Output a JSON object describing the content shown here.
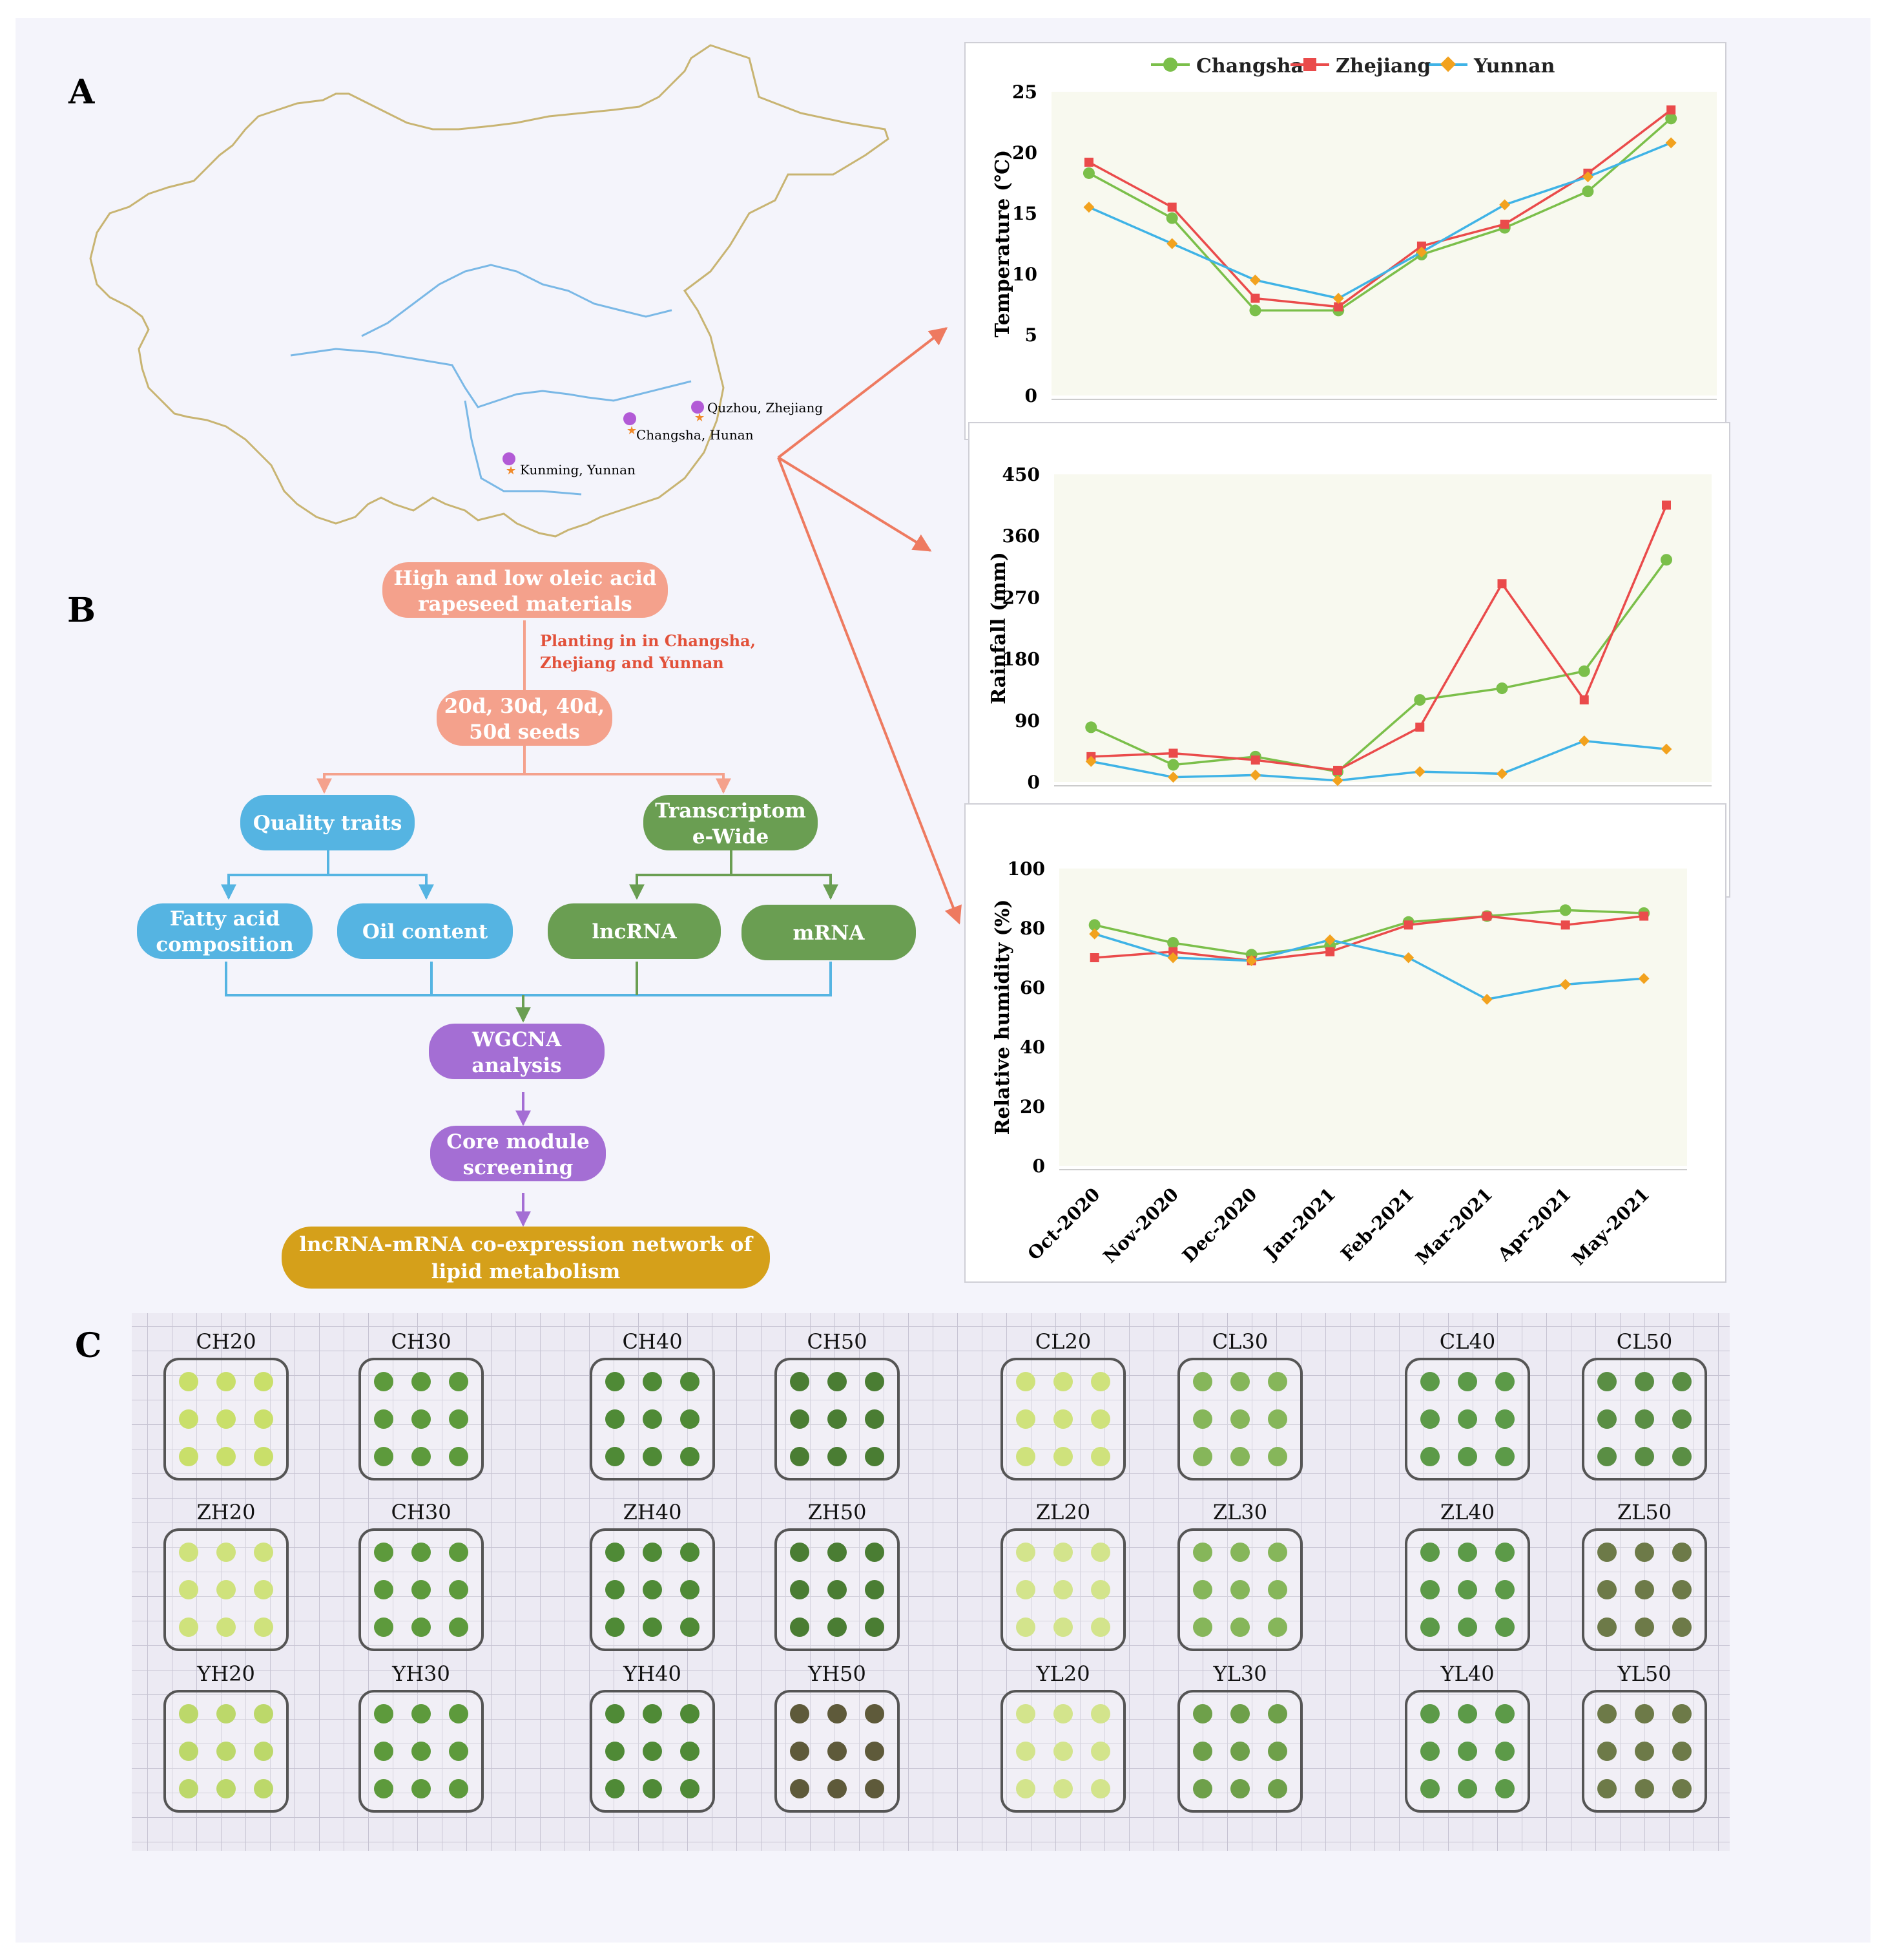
{
  "panels": {
    "a": "A",
    "b": "B",
    "c": "C"
  },
  "map": {
    "locations": [
      {
        "label": "Quzhou, Zhejiang"
      },
      {
        "label": "Changsha, Hunan"
      },
      {
        "label": "Kunming, Yunnan"
      }
    ],
    "colors": {
      "border": "#c8b472",
      "river": "#7ab8e6",
      "marker": "#b25ad6",
      "star": "#f08a2a"
    }
  },
  "flowchart": {
    "top_node": [
      "High and low oleic acid",
      "rapeseed materials"
    ],
    "planting_note": [
      "Planting in in Changsha,",
      "Zhejiang and Yunnan"
    ],
    "seeds_node": [
      "20d, 30d, 40d,",
      "50d seeds"
    ],
    "quality_node": [
      "Quality traits"
    ],
    "transcriptome_node": [
      "Transcriptom",
      "e-Wide"
    ],
    "fatty_node": [
      "Fatty acid",
      "composition"
    ],
    "oil_node": [
      "Oil content"
    ],
    "lncrna_node": [
      "lncRNA"
    ],
    "mrna_node": [
      "mRNA"
    ],
    "wgcna_node": [
      "WGCNA",
      "analysis"
    ],
    "core_node": [
      "Core module",
      "screening"
    ],
    "network_node": [
      "lncRNA-mRNA co-expression network of",
      "lipid metabolism"
    ],
    "colors": {
      "salmon": "#f4a18c",
      "blue": "#55b4e2",
      "green": "#6a9e52",
      "purple": "#a46ed4",
      "gold": "#d5a01a"
    }
  },
  "chart_data": [
    {
      "type": "line",
      "title": "",
      "xlabel": "",
      "ylabel": "Temperature (℃)",
      "ylim": [
        0,
        25
      ],
      "yticks": [
        "0",
        "5",
        "10",
        "15",
        "20",
        "25"
      ],
      "categories": [
        "Oct-2020",
        "Nov-2020",
        "Dec-2020",
        "Jan-2021",
        "Feb-2021",
        "Mar-2021",
        "Apr-2021",
        "May-2021"
      ],
      "legend": [
        "Changsha",
        "Zhejiang",
        "Yunnan"
      ],
      "series": [
        {
          "name": "Changsha",
          "values": [
            18.3,
            14.6,
            7.0,
            7.0,
            11.6,
            13.8,
            16.8,
            22.8
          ]
        },
        {
          "name": "Zhejiang",
          "values": [
            19.2,
            15.5,
            8.0,
            7.3,
            12.3,
            14.1,
            18.3,
            23.5
          ]
        },
        {
          "name": "Yunnan",
          "values": [
            15.5,
            12.5,
            9.5,
            8.0,
            11.8,
            15.7,
            18.0,
            20.8
          ]
        }
      ]
    },
    {
      "type": "line",
      "title": "",
      "xlabel": "",
      "ylabel": "Rainfall (mm)",
      "ylim": [
        0,
        450
      ],
      "yticks": [
        "0",
        "90",
        "180",
        "270",
        "360",
        "450"
      ],
      "categories": [
        "Oct-2020",
        "Nov-2020",
        "Dec-2020",
        "Jan-2021",
        "Feb-2021",
        "Mar-2021",
        "Apr-2021",
        "May-2021"
      ],
      "series": [
        {
          "name": "Changsha",
          "values": [
            80,
            25,
            37,
            15,
            120,
            137,
            162,
            325
          ]
        },
        {
          "name": "Zhejiang",
          "values": [
            37,
            42,
            32,
            17,
            80,
            290,
            120,
            405
          ]
        },
        {
          "name": "Yunnan",
          "values": [
            30,
            7,
            10,
            2,
            15,
            12,
            60,
            48
          ]
        }
      ]
    },
    {
      "type": "line",
      "title": "",
      "xlabel": "",
      "ylabel": "Relative humidity (%)",
      "ylim": [
        0,
        100
      ],
      "yticks": [
        "0",
        "20",
        "40",
        "60",
        "80",
        "100"
      ],
      "categories": [
        "Oct-2020",
        "Nov-2020",
        "Dec-2020",
        "Jan-2021",
        "Feb-2021",
        "Mar-2021",
        "Apr-2021",
        "May-2021"
      ],
      "series": [
        {
          "name": "Changsha",
          "values": [
            81,
            75,
            71,
            74,
            82,
            84,
            86,
            85
          ]
        },
        {
          "name": "Zhejiang",
          "values": [
            70,
            72,
            69,
            72,
            81,
            84,
            81,
            84
          ]
        },
        {
          "name": "Yunnan",
          "values": [
            78,
            70,
            69,
            76,
            70,
            56,
            61,
            63
          ]
        }
      ]
    }
  ],
  "series_colors": {
    "Changsha": "#7bbf4a",
    "Zhejiang": "#ea4b4b",
    "Yunnan": "#f2a21e"
  },
  "yunnan_line_color": "#3fb3e6",
  "samples": {
    "rows": [
      [
        "CH20",
        "CH30",
        "CH40",
        "CH50",
        "CL20",
        "CL30",
        "CL40",
        "CL50"
      ],
      [
        "ZH20",
        "CH30",
        "ZH40",
        "ZH50",
        "ZL20",
        "ZL30",
        "ZL40",
        "ZL50"
      ],
      [
        "YH20",
        "YH30",
        "YH40",
        "YH50",
        "YL20",
        "YL30",
        "YL40",
        "YL50"
      ]
    ]
  }
}
